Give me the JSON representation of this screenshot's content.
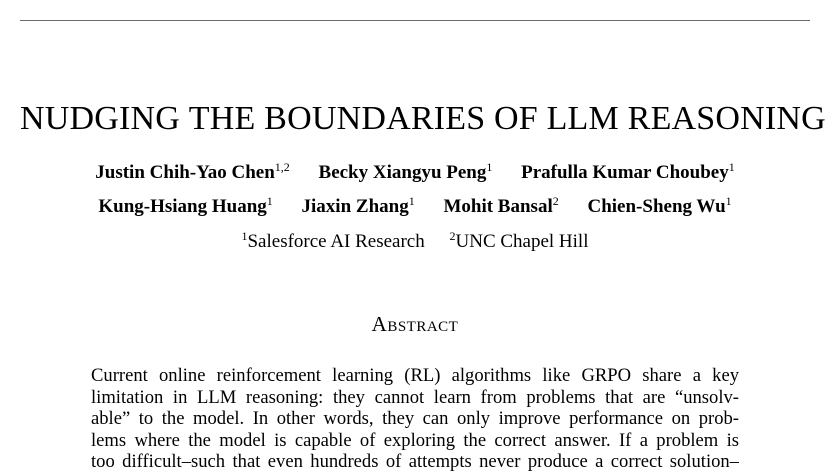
{
  "paper": {
    "title": {
      "w1_cap": "N",
      "w1_rest": "UDGING",
      "w2": "THE",
      "w3_cap": "B",
      "w3_rest": "OUNDARIES",
      "w4": "OF",
      "w5": "LLM",
      "w6_cap": "R",
      "w6_rest": "EASONING"
    },
    "authors": [
      {
        "name": "Justin Chih-Yao Chen",
        "sup": "1,2"
      },
      {
        "name": "Becky Xiangyu Peng",
        "sup": "1"
      },
      {
        "name": "Prafulla Kumar Choubey",
        "sup": "1"
      },
      {
        "name": "Kung-Hsiang Huang",
        "sup": "1"
      },
      {
        "name": "Jiaxin Zhang",
        "sup": "1"
      },
      {
        "name": "Mohit Bansal",
        "sup": "2"
      },
      {
        "name": "Chien-Sheng Wu",
        "sup": "1"
      }
    ],
    "affiliations": [
      {
        "sup": "1",
        "name": "Salesforce AI Research"
      },
      {
        "sup": "2",
        "name": "UNC Chapel Hill"
      }
    ],
    "abstract_heading": "Abstract",
    "abstract_lines": [
      "Current online reinforcement learning (RL) algorithms like GRPO share a key",
      "limitation in LLM reasoning: they cannot learn from problems that are “unsolv-",
      "able” to the model. In other words, they can only improve performance on prob-",
      "lems where the model is capable of exploring the correct answer. If a problem is",
      "too difficult–such that even hundreds of attempts never produce a correct solution–"
    ]
  }
}
